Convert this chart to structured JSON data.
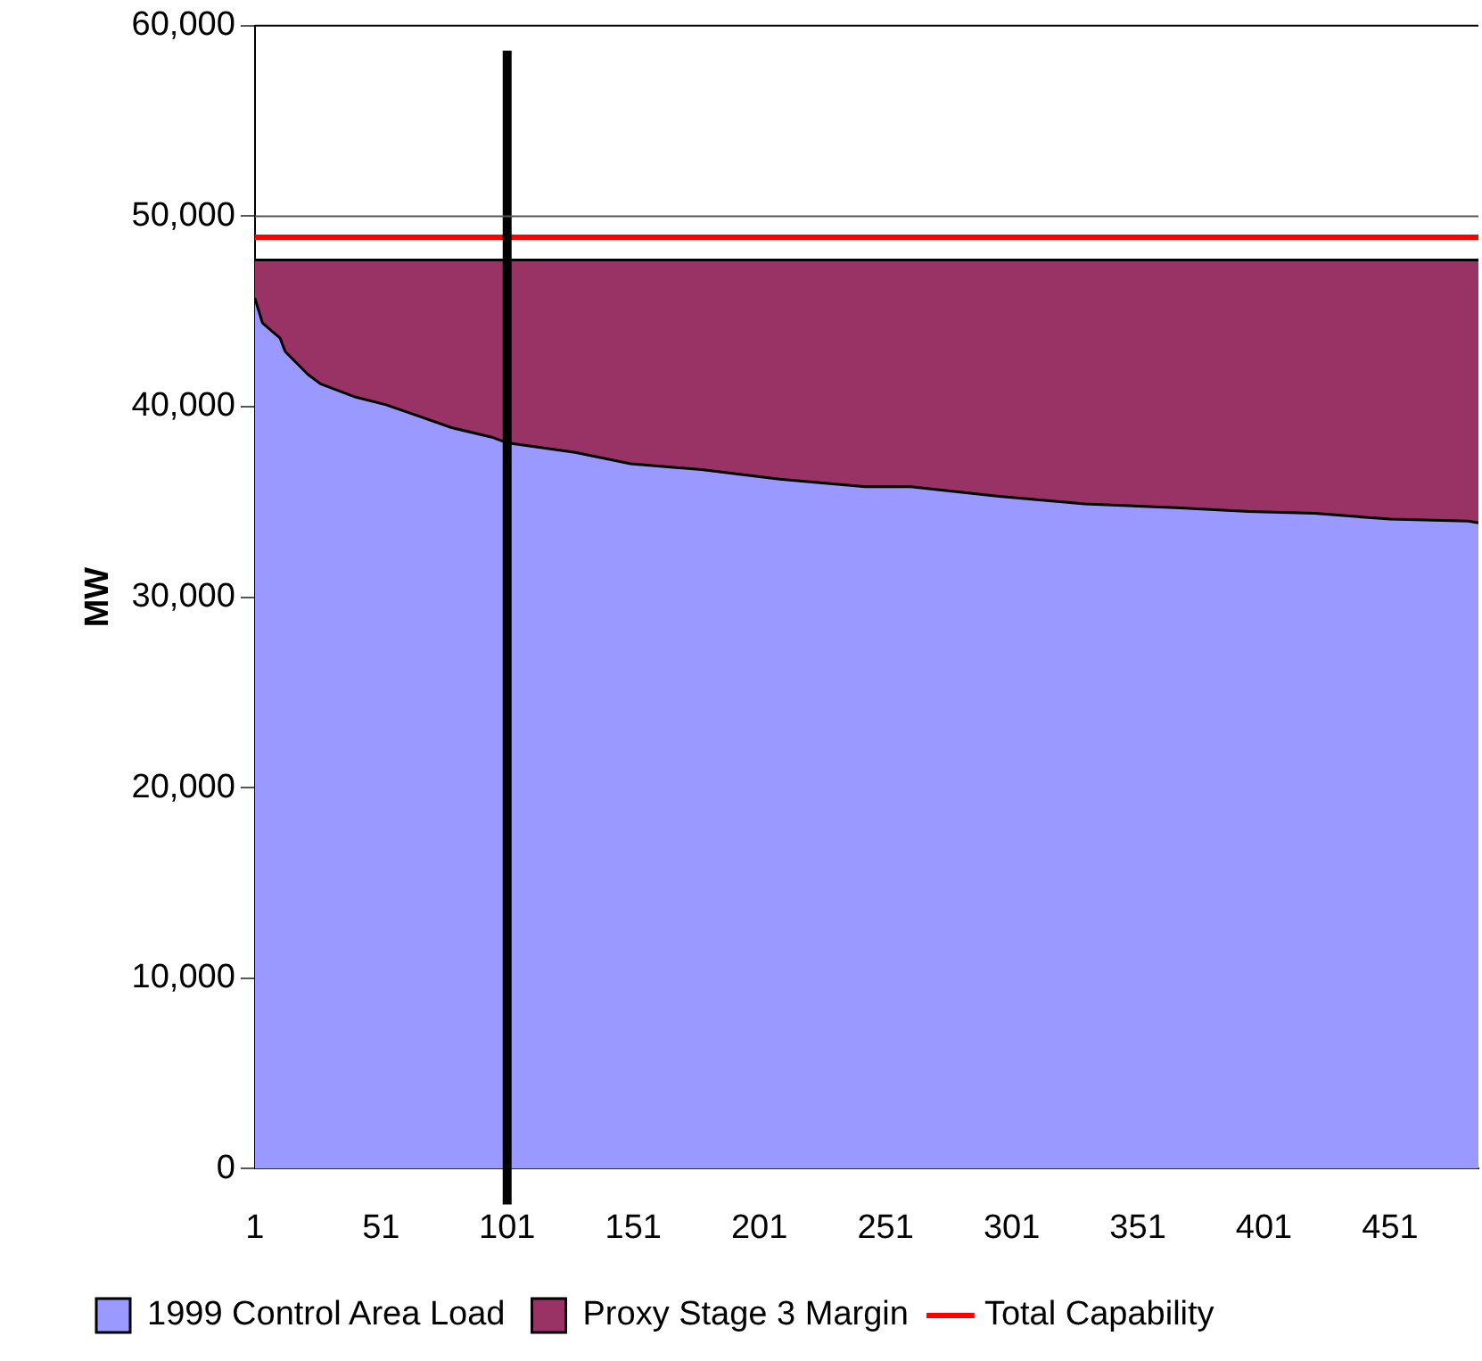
{
  "chart_data": {
    "type": "area",
    "ylabel": "MW",
    "stacked": true,
    "x": [
      1,
      4,
      11,
      13,
      22,
      27,
      41,
      53,
      66,
      79,
      95,
      101,
      128,
      150,
      178,
      209,
      243,
      261,
      296,
      330,
      366,
      395,
      421,
      451,
      482,
      486
    ],
    "xlim": [
      1,
      486
    ],
    "xticks": [
      1,
      51,
      101,
      151,
      201,
      251,
      301,
      351,
      401,
      451
    ],
    "ylim": [
      0,
      60000
    ],
    "yticks": [
      0,
      {
        "value": 10000,
        "label": "10,000"
      },
      {
        "value": 20000,
        "label": "20,000"
      },
      {
        "value": 30000,
        "label": "30,000"
      },
      {
        "value": 40000,
        "label": "40,000"
      },
      {
        "value": 50000,
        "label": "50,000"
      },
      {
        "value": 60000,
        "label": "60,000"
      }
    ],
    "legend": "bottom",
    "marker": "none",
    "series": [
      {
        "name": "1999 Control Area Load",
        "color": "#9999ff",
        "values": [
          45700,
          44400,
          43600,
          42900,
          41700,
          41200,
          40500,
          40100,
          39500,
          38900,
          38400,
          38100,
          37600,
          37000,
          36700,
          36200,
          35800,
          35800,
          35300,
          34900,
          34700,
          34500,
          34400,
          34100,
          34000,
          33900
        ]
      },
      {
        "name": "Proxy Stage 3 Margin",
        "color": "#993366",
        "values": [
          2000,
          3300,
          4100,
          4800,
          6000,
          6500,
          7200,
          7600,
          8200,
          8800,
          9300,
          9600,
          10100,
          10700,
          11000,
          11500,
          11900,
          11900,
          12400,
          12800,
          13000,
          13200,
          13300,
          13600,
          13700,
          13800
        ]
      },
      {
        "name": "Total Capability",
        "type": "line",
        "color": "#ff0000",
        "x": [
          1,
          486
        ],
        "values": [
          48900,
          48900
        ]
      }
    ],
    "ref_lines": [
      {
        "axis": "x",
        "value": 101,
        "color": "#000000"
      },
      {
        "axis": "y",
        "value": 50000,
        "color": "#555555"
      }
    ]
  }
}
